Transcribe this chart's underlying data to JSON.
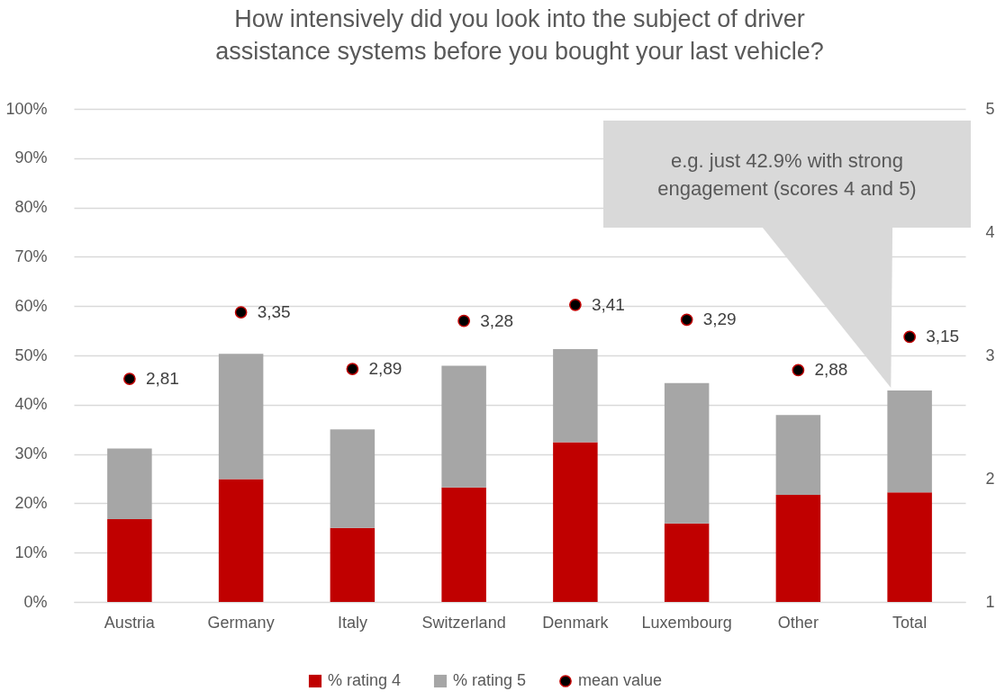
{
  "chart_data": {
    "type": "bar",
    "title": "How intensively did you look into the subject of driver assistance systems before you bought your last vehicle?",
    "categories": [
      "Austria",
      "Germany",
      "Italy",
      "Switzerland",
      "Denmark",
      "Luxembourg",
      "Other",
      "Total"
    ],
    "stacked": true,
    "series": [
      {
        "name": "% rating 4",
        "color": "#c00000",
        "values": [
          16.8,
          24.9,
          15.0,
          23.2,
          32.4,
          15.9,
          21.7,
          22.2
        ]
      },
      {
        "name": "% rating 5",
        "color": "#a6a6a6",
        "values": [
          14.3,
          25.4,
          20.0,
          24.7,
          18.9,
          28.5,
          16.2,
          20.7
        ]
      },
      {
        "name": "mean value",
        "type": "scatter",
        "axis": "y2",
        "color": "#000000",
        "values": [
          2.81,
          3.35,
          2.89,
          3.28,
          3.41,
          3.29,
          2.88,
          3.15
        ],
        "value_labels": [
          "2,81",
          "3,35",
          "2,89",
          "3,28",
          "3,41",
          "3,29",
          "2,88",
          "3,15"
        ]
      }
    ],
    "ylim": [
      0,
      100
    ],
    "yticks": [
      {
        "value": 0,
        "label": "0%"
      },
      {
        "value": 10,
        "label": "10%"
      },
      {
        "value": 20,
        "label": "20%"
      },
      {
        "value": 30,
        "label": "30%"
      },
      {
        "value": 40,
        "label": "40%"
      },
      {
        "value": 50,
        "label": "50%"
      },
      {
        "value": 60,
        "label": "60%"
      },
      {
        "value": 70,
        "label": "70%"
      },
      {
        "value": 80,
        "label": "80%"
      },
      {
        "value": 90,
        "label": "90%"
      },
      {
        "value": 100,
        "label": "100%"
      }
    ],
    "y2lim": [
      1,
      5
    ],
    "y2ticks": [
      1,
      2,
      3,
      4,
      5
    ],
    "grid": "y",
    "legend": "bottom",
    "marker": "circle",
    "annotations": [
      "e.g. just 42.9% with strong engagement (scores 4 and 5)"
    ]
  }
}
